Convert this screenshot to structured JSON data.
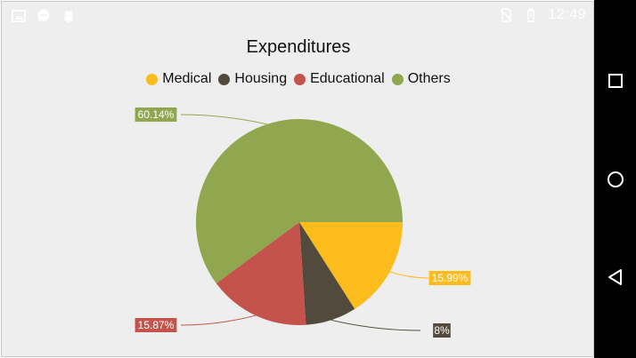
{
  "status_bar": {
    "time": "12:49",
    "left_icons": [
      "image-icon",
      "chat-bubble-icon",
      "android-icon"
    ],
    "right_icons": [
      "no-sim-icon",
      "battery-icon"
    ]
  },
  "chart_data": {
    "type": "pie",
    "title": "Expenditures",
    "legend_position": "top",
    "categories": [
      "Medical",
      "Housing",
      "Educational",
      "Others"
    ],
    "values": [
      15.99,
      8,
      15.87,
      60.14
    ],
    "labels": [
      "15.99%",
      "8%",
      "15.87%",
      "60.14%"
    ],
    "colors": [
      "#fbbc1c",
      "#524a3c",
      "#c4534b",
      "#91a74f"
    ]
  },
  "nav_bar": {
    "buttons": [
      "recents-button",
      "home-button",
      "back-button"
    ]
  }
}
